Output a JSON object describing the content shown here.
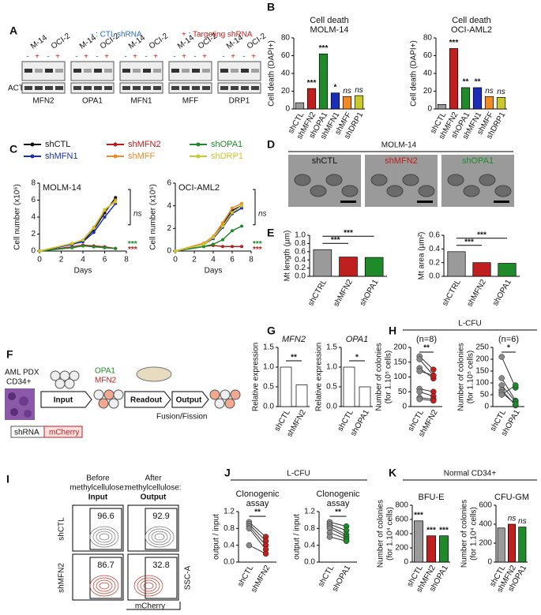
{
  "panel_labels": [
    "A",
    "B",
    "C",
    "D",
    "E",
    "F",
    "G",
    "H",
    "I",
    "J",
    "K"
  ],
  "panel_a": {
    "legend_ctl": "- : CTL shRNA",
    "legend_targeting": "+ : Targeting shRNA",
    "cell_lines": [
      "M-14",
      "OCI-2"
    ],
    "signs": [
      "-",
      "+"
    ],
    "loading_control": "ACTB",
    "genes": [
      "MFN2",
      "OPA1",
      "MFN1",
      "MFF",
      "DRP1"
    ]
  },
  "panel_d": {
    "title": "MOLM-14",
    "labels": [
      "shCTL",
      "shMFN2",
      "shOPA1"
    ]
  },
  "panel_f": {
    "source": "AML PDX",
    "cells": "CD34+",
    "steps": [
      "Input",
      "Readout",
      "Output"
    ],
    "genes": [
      "OPA1",
      "MFN2"
    ],
    "process": "Fusion/Fission",
    "construct": [
      "shRNA",
      "mCherry"
    ]
  },
  "panel_h": {
    "header": "L-CFU"
  },
  "panel_i": {
    "columns": [
      {
        "caption": [
          "Before",
          "methylcellulose:"
        ],
        "stage": "Input"
      },
      {
        "caption": [
          "After",
          "methylcellulose:"
        ],
        "stage": "Output"
      }
    ],
    "rows": [
      "shCTL",
      "shMFN2"
    ],
    "percentages": [
      [
        96.6,
        92.9
      ],
      [
        86.7,
        32.8
      ]
    ],
    "y_axis": "SSC-A",
    "x_axis": "mCherry"
  },
  "panel_j": {
    "header": "L-CFU"
  },
  "panel_k": {
    "header": "Normal CD34+"
  },
  "chart_data": [
    {
      "type": "bar",
      "title": [
        "Cell death",
        "MOLM-14"
      ],
      "ylabel": "Cell death (DAPI+)",
      "ylim": [
        0,
        80
      ],
      "yticks": [
        0,
        20,
        40,
        60,
        80
      ],
      "categories": [
        "shCTL",
        "shMFN2",
        "shOPA1",
        "shMFN1",
        "shMFF",
        "shDRP1"
      ],
      "values": [
        7,
        23,
        62,
        18,
        14,
        15
      ],
      "colors": [
        "#9a9a9a",
        "#c01f1f",
        "#1e8a2a",
        "#1c2db8",
        "#f08a24",
        "#c9c92a"
      ],
      "significance": [
        null,
        "***",
        "***",
        "*",
        "ns",
        "ns"
      ]
    },
    {
      "type": "bar",
      "title": [
        "Cell death",
        "OCI-AML2"
      ],
      "ylabel": "Cell death (DAPI+)",
      "ylim": [
        0,
        80
      ],
      "yticks": [
        0,
        20,
        40,
        60,
        80
      ],
      "categories": [
        "shCTL",
        "shMFN2",
        "shOPA1",
        "shMFN1",
        "shMFF",
        "shDRP1"
      ],
      "values": [
        5,
        68,
        24,
        24,
        14,
        13
      ],
      "colors": [
        "#9a9a9a",
        "#c01f1f",
        "#1e8a2a",
        "#1c2db8",
        "#f08a24",
        "#c9c92a"
      ],
      "significance": [
        null,
        "***",
        "**",
        "**",
        "ns",
        "ns"
      ]
    },
    {
      "type": "line",
      "title": "MOLM-14",
      "ylabel": "Cell number (x10⁶)",
      "xlabel": "Days",
      "xlim": [
        0,
        8
      ],
      "xticks": [
        0,
        2,
        4,
        6,
        8
      ],
      "ylim": [
        0,
        8
      ],
      "yticks": [
        0,
        2,
        4,
        6,
        8
      ],
      "x": [
        0,
        3,
        4,
        5,
        6,
        7
      ],
      "series": [
        {
          "name": "shCTL",
          "color": "#111111",
          "values": [
            0,
            0.8,
            1.2,
            2.5,
            4.5,
            6.3
          ]
        },
        {
          "name": "shMFN2",
          "color": "#b51d1d",
          "values": [
            0,
            0.5,
            0.7,
            0.6,
            0.5,
            0.3
          ]
        },
        {
          "name": "shOPA1",
          "color": "#1e8a2a",
          "values": [
            0,
            0.4,
            0.6,
            0.5,
            0.4,
            0.3
          ]
        },
        {
          "name": "shMFN1",
          "color": "#1c2db8",
          "values": [
            0,
            0.8,
            1.1,
            2.2,
            4.0,
            5.6
          ]
        },
        {
          "name": "shMFF",
          "color": "#f08a24",
          "values": [
            0,
            0.9,
            1.3,
            2.8,
            4.8,
            6.0
          ]
        },
        {
          "name": "shDRP1",
          "color": "#c9c92a",
          "values": [
            0,
            0.9,
            1.3,
            2.7,
            4.9,
            5.8
          ]
        }
      ],
      "annotations": [
        {
          "text": "ns",
          "color": "#222222"
        },
        {
          "text": "***",
          "color": "#1e8a2a"
        },
        {
          "text": "***",
          "color": "#b51d1d"
        }
      ]
    },
    {
      "type": "line",
      "title": "OCI-AML2",
      "ylabel": "Cell number (x10⁶)",
      "xlabel": "Days",
      "xlim": [
        0,
        8
      ],
      "xticks": [
        0,
        2,
        4,
        6,
        8
      ],
      "ylim": [
        0,
        6
      ],
      "yticks": [
        0,
        2,
        4,
        6
      ],
      "x": [
        0,
        3,
        4,
        5,
        6,
        7
      ],
      "series": [
        {
          "color": "#111111",
          "values": [
            0,
            0.6,
            1.2,
            2.3,
            3.6,
            4.0
          ]
        },
        {
          "color": "#b51d1d",
          "values": [
            0,
            0.4,
            0.5,
            0.4,
            0.4,
            0.4
          ]
        },
        {
          "color": "#1e8a2a",
          "values": [
            0,
            0.4,
            0.6,
            1.0,
            1.8,
            2.2
          ]
        },
        {
          "color": "#1c2db8",
          "values": [
            0,
            0.6,
            1.1,
            2.1,
            3.3,
            3.8
          ]
        },
        {
          "color": "#f08a24",
          "values": [
            0,
            0.7,
            1.3,
            2.5,
            3.8,
            4.2
          ]
        },
        {
          "color": "#c9c92a",
          "values": [
            0,
            0.6,
            1.2,
            2.2,
            3.4,
            4.0
          ]
        }
      ],
      "annotations": [
        {
          "text": "ns",
          "color": "#222222"
        },
        {
          "text": "***",
          "color": "#1e8a2a"
        },
        {
          "text": "***",
          "color": "#b51d1d"
        }
      ]
    },
    {
      "type": "bar",
      "ylabel": "Mt length (µm)",
      "ylim": [
        0,
        1
      ],
      "yticks": [
        {
          "value": 0,
          "label": "0.0"
        },
        {
          "value": 0.2,
          "label": "0.2"
        },
        {
          "value": 0.4,
          "label": "0.4"
        },
        {
          "value": 0.6,
          "label": "0.6"
        },
        {
          "value": 0.8,
          "label": "0.8"
        },
        {
          "value": 1,
          "label": "1.0"
        }
      ],
      "categories": [
        "shCTRL",
        "shMFN2",
        "shOPA1"
      ],
      "values": [
        0.65,
        0.47,
        0.46
      ],
      "colors": [
        "#9a9a9a",
        "#c01f1f",
        "#1e8a2a"
      ],
      "significance": [
        null,
        "***",
        "***"
      ],
      "brackets": true
    },
    {
      "type": "bar",
      "ylabel": "Mt area (µm²)",
      "ylim": [
        0,
        0.6
      ],
      "yticks": [
        {
          "value": 0,
          "label": "0.0"
        },
        {
          "value": 0.2,
          "label": "0.2"
        },
        {
          "value": 0.4,
          "label": "0.4"
        },
        {
          "value": 0.6,
          "label": "0.6"
        }
      ],
      "categories": [
        "shCTRL",
        "shMFN2",
        "shOPA1"
      ],
      "values": [
        0.36,
        0.2,
        0.19
      ],
      "colors": [
        "#9a9a9a",
        "#c01f1f",
        "#1e8a2a"
      ],
      "significance": [
        null,
        "***",
        "***"
      ],
      "brackets": true
    },
    {
      "type": "bar",
      "title": "MFN2",
      "title_italic": true,
      "ylabel": "Relative expression",
      "ylim": [
        0,
        1.5
      ],
      "yticks": [
        {
          "value": 0,
          "label": "0.0"
        },
        {
          "value": 0.5,
          "label": "0.5"
        },
        {
          "value": 1,
          "label": "1.0"
        },
        {
          "value": 1.5,
          "label": "1.5"
        }
      ],
      "categories": [
        "shCTL",
        "shMFN2"
      ],
      "values": [
        1.0,
        0.55
      ],
      "colors": [
        "#ffffff",
        "#ffffff"
      ],
      "significance": [
        null,
        "**"
      ],
      "brackets": true
    },
    {
      "type": "bar",
      "title": "OPA1",
      "title_italic": true,
      "ylabel": "Relative expression",
      "ylim": [
        0,
        1.5
      ],
      "yticks": [
        {
          "value": 0,
          "label": "0.0"
        },
        {
          "value": 0.5,
          "label": "0.5"
        },
        {
          "value": 1,
          "label": "1.0"
        },
        {
          "value": 1.5,
          "label": "1.5"
        }
      ],
      "categories": [
        "shCTL",
        "shOPA1"
      ],
      "values": [
        1.0,
        0.5
      ],
      "colors": [
        "#ffffff",
        "#ffffff"
      ],
      "significance": [
        null,
        "*"
      ],
      "brackets": true
    },
    {
      "type": "paired",
      "title": "(n=8)",
      "ylabel": [
        "Number of colonies",
        "(for 1.10⁵ cells)"
      ],
      "ylim": [
        0,
        200
      ],
      "yticks": [
        0,
        50,
        100,
        150,
        200
      ],
      "categories": [
        "shCTL",
        "shMFN2"
      ],
      "colors": [
        "#8a8a8a",
        "#c01f1f"
      ],
      "pairs": [
        [
          170,
          125
        ],
        [
          160,
          105
        ],
        [
          130,
          95
        ],
        [
          120,
          105
        ],
        [
          60,
          50
        ],
        [
          50,
          35
        ],
        [
          30,
          25
        ],
        [
          25,
          20
        ]
      ],
      "significance": "**"
    },
    {
      "type": "paired",
      "title": "(n=6)",
      "ylabel": [
        "Number of colonies",
        "(for 1.10⁵ cells)"
      ],
      "ylim": [
        0,
        250
      ],
      "yticks": [
        0,
        50,
        100,
        150,
        200,
        250
      ],
      "categories": [
        "shCTL",
        "shOPA1"
      ],
      "colors": [
        "#8a8a8a",
        "#1e8a2a"
      ],
      "pairs": [
        [
          210,
          80
        ],
        [
          120,
          25
        ],
        [
          90,
          20
        ],
        [
          70,
          5
        ],
        [
          60,
          10
        ],
        [
          50,
          90
        ]
      ],
      "significance": "*"
    },
    {
      "type": "paired",
      "title": [
        "Clonogenic",
        "assay"
      ],
      "ylabel": "output / input",
      "ylim": [
        0,
        1.2
      ],
      "yticks": [
        {
          "value": 0,
          "label": "0.0"
        },
        {
          "value": 0.4,
          "label": "0.4"
        },
        {
          "value": 0.8,
          "label": "0.8"
        },
        {
          "value": 1.2,
          "label": "1.2"
        }
      ],
      "categories": [
        "shCTL",
        "shMFN2"
      ],
      "colors": [
        "#8a8a8a",
        "#c01f1f"
      ],
      "pairs": [
        [
          0.95,
          0.6
        ],
        [
          0.9,
          0.5
        ],
        [
          0.85,
          0.4
        ],
        [
          0.8,
          0.3
        ],
        [
          0.4,
          0.2
        ]
      ],
      "significance": "**"
    },
    {
      "type": "paired",
      "title": [
        "Clonogenic",
        "assay"
      ],
      "ylabel": "output / input",
      "ylim": [
        0,
        1.2
      ],
      "yticks": [
        {
          "value": 0,
          "label": "0.0"
        },
        {
          "value": 0.4,
          "label": "0.4"
        },
        {
          "value": 0.8,
          "label": "0.8"
        },
        {
          "value": 1.2,
          "label": "1.2"
        }
      ],
      "categories": [
        "shCTL",
        "shOPA1"
      ],
      "colors": [
        "#8a8a8a",
        "#1e8a2a"
      ],
      "pairs": [
        [
          0.95,
          0.85
        ],
        [
          0.9,
          0.75
        ],
        [
          0.85,
          0.65
        ],
        [
          0.8,
          0.6
        ],
        [
          0.7,
          0.55
        ],
        [
          0.6,
          0.5
        ]
      ],
      "significance": "**"
    },
    {
      "type": "bar",
      "title": "BFU-E",
      "ylabel": [
        "Number of colonies",
        "(for 1.10⁴ cells)"
      ],
      "ylim": [
        0,
        800
      ],
      "yticks": [
        0,
        200,
        400,
        600,
        800
      ],
      "categories": [
        "shCTL",
        "shMFN2",
        "shOPA1"
      ],
      "values": [
        580,
        370,
        370
      ],
      "colors": [
        "#9a9a9a",
        "#c01f1f",
        "#1e8a2a"
      ],
      "significance": [
        "***",
        "***",
        "***"
      ]
    },
    {
      "type": "bar",
      "title": "CFU-GM",
      "ylabel": [
        "Number of colonies",
        "(for 1.10⁴ cells)"
      ],
      "ylim": [
        0,
        600
      ],
      "yticks": [
        0,
        200,
        400,
        600
      ],
      "categories": [
        "shCTL",
        "shMFN2",
        "shOPA1"
      ],
      "values": [
        360,
        400,
        370
      ],
      "colors": [
        "#9a9a9a",
        "#c01f1f",
        "#1e8a2a"
      ],
      "significance": [
        null,
        "ns",
        "ns"
      ]
    }
  ]
}
